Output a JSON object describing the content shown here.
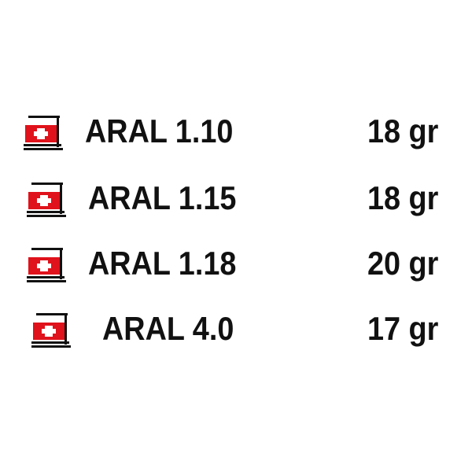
{
  "items": [
    {
      "label": "ARAL 1.10",
      "weight": "18 gr",
      "icon": "swiss-flag-box-icon"
    },
    {
      "label": "ARAL 1.15",
      "weight": "18 gr",
      "icon": "swiss-flag-box-icon"
    },
    {
      "label": "ARAL 1.18",
      "weight": "20 gr",
      "icon": "swiss-flag-box-icon"
    },
    {
      "label": "ARAL 4.0",
      "weight": "17 gr",
      "icon": "swiss-flag-box-icon"
    }
  ],
  "colors": {
    "icon_red": "#e0121b",
    "text": "#111111"
  }
}
